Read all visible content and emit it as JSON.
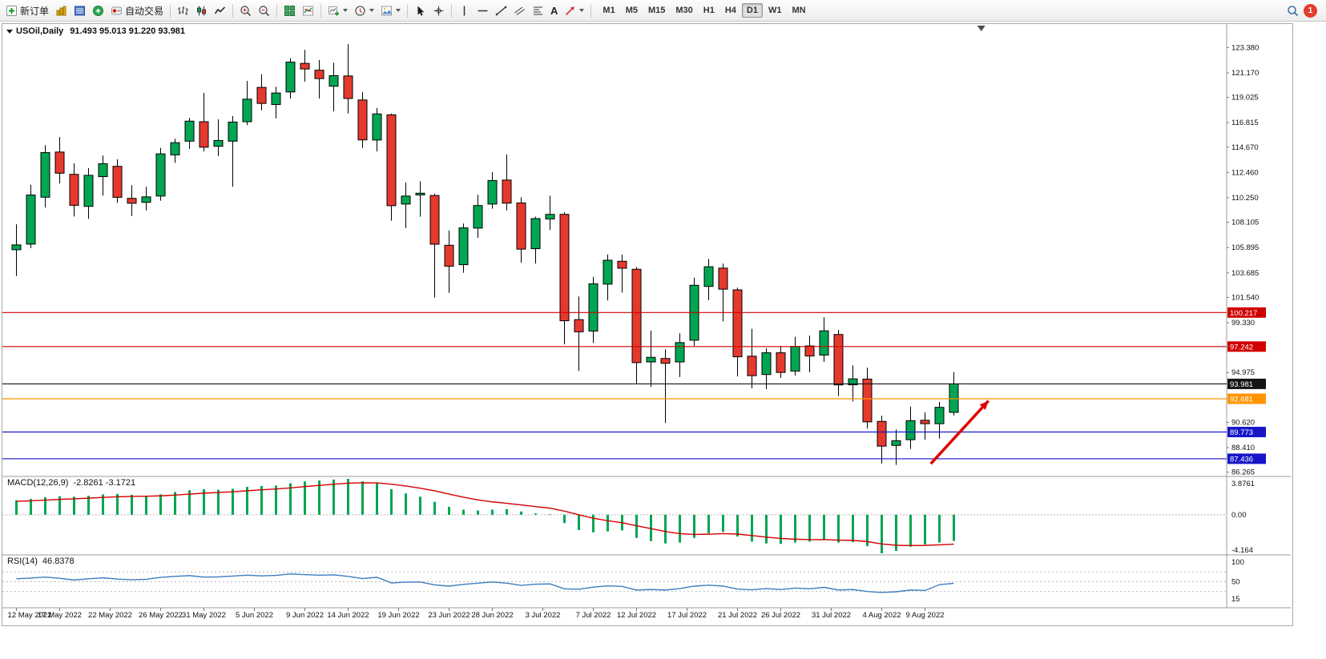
{
  "toolbar": {
    "new_order_label": "新订单",
    "autotrading_label": "自动交易",
    "text_tool_glyph": "A",
    "timeframes": [
      "M1",
      "M5",
      "M15",
      "M30",
      "H1",
      "H4",
      "D1",
      "W1",
      "MN"
    ],
    "active_timeframe": "D1",
    "notification_count": "1"
  },
  "chart_window": {
    "title": "USOil,Daily",
    "ohlc_display": "91.493 95.013 91.220 93.981",
    "indicator_labels": {
      "macd": "MACD(12,26,9)",
      "macd_values": "-2.8261 -3.1721",
      "rsi": "RSI(14)",
      "rsi_value": "46.8378"
    },
    "price_axis_ticks": [
      "123.380",
      "121.170",
      "119.025",
      "116.815",
      "114.670",
      "112.460",
      "110.250",
      "108.105",
      "105.895",
      "103.685",
      "101.540",
      "99.330",
      "94.975",
      "90.620",
      "88.410",
      "86.265"
    ],
    "macd_axis_ticks": [
      "3.8761",
      "0.00",
      "-4.164"
    ],
    "rsi_axis_ticks": [
      "100",
      "50",
      "15"
    ],
    "price_lines": [
      {
        "price": 100.217,
        "label": "100.217",
        "color": "#d00000"
      },
      {
        "price": 97.242,
        "label": "97.242",
        "color": "#d00000"
      },
      {
        "price": 93.981,
        "label": "93.981",
        "color": "#141414"
      },
      {
        "price": 92.681,
        "label": "92.681",
        "color": "#ff9400"
      },
      {
        "price": 89.773,
        "label": "89.773",
        "color": "#1616c8"
      },
      {
        "price": 87.436,
        "label": "87.436",
        "color": "#1616c8"
      }
    ],
    "date_axis": [
      {
        "label": "12 May 2022",
        "i": 0
      },
      {
        "label": "17 May 2022",
        "i": 3
      },
      {
        "label": "22 May 2022",
        "i": 6.5
      },
      {
        "label": "26 May 2022",
        "i": 10
      },
      {
        "label": "31 May 2022",
        "i": 13
      },
      {
        "label": "5 Jun 2022",
        "i": 16.5
      },
      {
        "label": "9 Jun 2022",
        "i": 20
      },
      {
        "label": "14 Jun 2022",
        "i": 23
      },
      {
        "label": "19 Jun 2022",
        "i": 26.5
      },
      {
        "label": "23 Jun 2022",
        "i": 30
      },
      {
        "label": "28 Jun 2022",
        "i": 33
      },
      {
        "label": "3 Jul 2022",
        "i": 36.5
      },
      {
        "label": "7 Jul 2022",
        "i": 40
      },
      {
        "label": "12 Jul 2022",
        "i": 43
      },
      {
        "label": "17 Jul 2022",
        "i": 46.5
      },
      {
        "label": "21 Jul 2022",
        "i": 50
      },
      {
        "label": "26 Jul 2022",
        "i": 53
      },
      {
        "label": "31 Jul 2022",
        "i": 56.5
      },
      {
        "label": "4 Aug 2022",
        "i": 60
      },
      {
        "label": "9 Aug 2022",
        "i": 63
      }
    ],
    "annotations": {
      "trend_arrow": {
        "from_i": 63.4,
        "from_price": 87.0,
        "to_i": 67.4,
        "to_price": 92.5,
        "color": "#e00000"
      },
      "shift_marker_i": 66.9
    }
  },
  "chart_data": [
    {
      "type": "candlestick",
      "symbol": "USOil",
      "timeframe": "Daily",
      "ylim": [
        86.1,
        125.3
      ],
      "colors": {
        "up": "#00a651",
        "down": "#e6392e",
        "outline": "#000000"
      },
      "ohlc": [
        [
          105.71,
          107.93,
          103.41,
          106.13
        ],
        [
          106.2,
          111.4,
          105.85,
          110.49
        ],
        [
          110.3,
          114.85,
          109.4,
          114.2
        ],
        [
          114.25,
          115.56,
          111.5,
          112.4
        ],
        [
          112.3,
          113.25,
          108.61,
          109.59
        ],
        [
          109.5,
          112.85,
          108.4,
          112.21
        ],
        [
          112.1,
          113.94,
          110.43,
          113.23
        ],
        [
          113.0,
          113.61,
          109.8,
          110.29
        ],
        [
          110.2,
          111.35,
          108.66,
          109.77
        ],
        [
          109.85,
          111.2,
          109.15,
          110.33
        ],
        [
          110.4,
          114.62,
          110.0,
          114.09
        ],
        [
          114.0,
          115.4,
          113.3,
          115.07
        ],
        [
          115.2,
          117.25,
          114.52,
          116.95
        ],
        [
          116.9,
          119.42,
          114.3,
          114.67
        ],
        [
          114.75,
          117.1,
          113.9,
          115.26
        ],
        [
          115.2,
          117.4,
          111.2,
          116.87
        ],
        [
          116.9,
          120.46,
          116.6,
          118.87
        ],
        [
          119.9,
          121.05,
          117.9,
          118.5
        ],
        [
          118.4,
          119.95,
          117.2,
          119.41
        ],
        [
          119.5,
          122.45,
          118.93,
          122.11
        ],
        [
          122.0,
          123.18,
          120.4,
          121.51
        ],
        [
          121.4,
          122.3,
          118.93,
          120.67
        ],
        [
          120.0,
          122.05,
          117.8,
          120.93
        ],
        [
          120.9,
          123.68,
          117.62,
          118.93
        ],
        [
          118.8,
          119.5,
          114.6,
          115.31
        ],
        [
          115.3,
          118.1,
          114.3,
          117.58
        ],
        [
          117.5,
          117.62,
          108.25,
          109.56
        ],
        [
          109.7,
          111.6,
          107.6,
          110.4
        ],
        [
          110.5,
          111.7,
          108.6,
          110.65
        ],
        [
          110.45,
          110.6,
          101.53,
          106.19
        ],
        [
          106.1,
          107.4,
          101.93,
          104.27
        ],
        [
          104.4,
          108.0,
          103.7,
          107.62
        ],
        [
          107.6,
          110.5,
          106.75,
          109.57
        ],
        [
          109.7,
          112.5,
          109.3,
          111.76
        ],
        [
          111.8,
          114.05,
          109.15,
          109.78
        ],
        [
          109.8,
          110.3,
          104.56,
          105.76
        ],
        [
          105.8,
          108.6,
          104.5,
          108.43
        ],
        [
          108.4,
          110.43,
          107.43,
          108.8
        ],
        [
          108.8,
          108.98,
          97.43,
          99.5
        ],
        [
          99.6,
          101.62,
          95.1,
          98.53
        ],
        [
          98.6,
          103.33,
          97.55,
          102.73
        ],
        [
          102.7,
          105.3,
          101.28,
          104.79
        ],
        [
          104.7,
          105.28,
          101.96,
          104.09
        ],
        [
          104.0,
          104.2,
          93.98,
          95.84
        ],
        [
          95.9,
          98.65,
          93.72,
          96.3
        ],
        [
          96.2,
          97.0,
          90.56,
          95.78
        ],
        [
          95.9,
          98.4,
          94.58,
          97.59
        ],
        [
          97.8,
          103.27,
          97.3,
          102.6
        ],
        [
          102.5,
          104.9,
          101.3,
          104.22
        ],
        [
          104.1,
          104.5,
          99.45,
          102.26
        ],
        [
          102.2,
          102.4,
          94.63,
          96.35
        ],
        [
          96.4,
          98.8,
          93.6,
          94.7
        ],
        [
          94.8,
          97.1,
          93.52,
          96.7
        ],
        [
          96.7,
          97.3,
          94.5,
          94.98
        ],
        [
          95.1,
          98.1,
          94.7,
          97.26
        ],
        [
          97.3,
          98.2,
          95.0,
          96.42
        ],
        [
          96.5,
          99.8,
          95.9,
          98.62
        ],
        [
          98.3,
          98.7,
          92.92,
          93.89
        ],
        [
          93.9,
          95.6,
          92.45,
          94.42
        ],
        [
          94.4,
          95.4,
          90.07,
          90.66
        ],
        [
          90.7,
          91.2,
          87.01,
          88.54
        ],
        [
          88.6,
          90.0,
          86.9,
          89.01
        ],
        [
          89.1,
          92.0,
          88.3,
          90.76
        ],
        [
          90.8,
          91.5,
          89.1,
          90.5
        ],
        [
          90.5,
          92.4,
          89.2,
          91.93
        ],
        [
          91.493,
          95.013,
          91.22,
          93.981
        ]
      ]
    },
    {
      "type": "bar",
      "name": "MACD(12,26,9)",
      "current_values": "-2.8261 -3.1721",
      "ylim": [
        -4.164,
        3.8761
      ],
      "colors": {
        "histogram": "#00a651",
        "signal": "#d40000"
      },
      "histogram": [
        1.55,
        1.7,
        1.9,
        2.0,
        1.95,
        2.05,
        2.2,
        2.25,
        2.15,
        2.05,
        2.2,
        2.45,
        2.65,
        2.75,
        2.7,
        2.8,
        3.0,
        3.1,
        3.15,
        3.4,
        3.6,
        3.7,
        3.8,
        3.876,
        3.6,
        3.4,
        2.75,
        2.3,
        1.95,
        1.4,
        0.85,
        0.55,
        0.45,
        0.55,
        0.6,
        0.35,
        0.15,
        0.05,
        -0.9,
        -1.65,
        -1.9,
        -1.8,
        -1.7,
        -2.5,
        -2.85,
        -3.1,
        -3.0,
        -2.5,
        -2.0,
        -1.85,
        -2.35,
        -2.9,
        -3.1,
        -3.15,
        -3.0,
        -2.9,
        -2.65,
        -3.0,
        -2.95,
        -3.4,
        -4.164,
        -3.9,
        -3.45,
        -3.2,
        -3.0,
        -2.8261
      ],
      "signal": [
        1.45,
        1.5,
        1.58,
        1.66,
        1.72,
        1.79,
        1.87,
        1.94,
        1.98,
        2.0,
        2.04,
        2.12,
        2.23,
        2.33,
        2.4,
        2.48,
        2.59,
        2.69,
        2.78,
        2.9,
        3.04,
        3.17,
        3.3,
        3.41,
        3.45,
        3.44,
        3.3,
        3.1,
        2.87,
        2.58,
        2.23,
        1.89,
        1.6,
        1.39,
        1.23,
        1.06,
        0.88,
        0.71,
        0.39,
        -0.01,
        -0.38,
        -0.65,
        -0.86,
        -1.19,
        -1.5,
        -1.81,
        -2.04,
        -2.13,
        -2.1,
        -2.04,
        -2.09,
        -2.25,
        -2.42,
        -2.56,
        -2.64,
        -2.69,
        -2.68,
        -2.74,
        -2.77,
        -2.9,
        -3.15,
        -3.3,
        -3.33,
        -3.31,
        -3.25,
        -3.1721
      ]
    },
    {
      "type": "line",
      "name": "RSI(14)",
      "current_value": "46.8378",
      "ylim": [
        0,
        100
      ],
      "levels": [
        70,
        50,
        30
      ],
      "colors": {
        "line": "#3d7dbf"
      },
      "values": [
        56.0,
        57.5,
        59.5,
        57.0,
        53.5,
        56.0,
        58.0,
        55.5,
        54.0,
        55.0,
        59.0,
        61.0,
        62.5,
        59.5,
        60.0,
        61.5,
        63.5,
        62.0,
        63.0,
        66.0,
        64.5,
        63.5,
        64.0,
        61.0,
        56.5,
        59.0,
        47.5,
        49.0,
        49.5,
        43.5,
        41.0,
        44.5,
        47.0,
        49.5,
        47.0,
        42.5,
        45.0,
        45.5,
        35.5,
        34.5,
        39.0,
        41.5,
        40.5,
        33.0,
        34.0,
        33.0,
        36.0,
        41.0,
        43.0,
        41.0,
        35.0,
        33.5,
        36.0,
        34.0,
        37.0,
        35.5,
        38.5,
        33.0,
        34.0,
        30.0,
        28.0,
        29.5,
        33.0,
        32.0,
        44.0,
        46.8378
      ]
    }
  ]
}
